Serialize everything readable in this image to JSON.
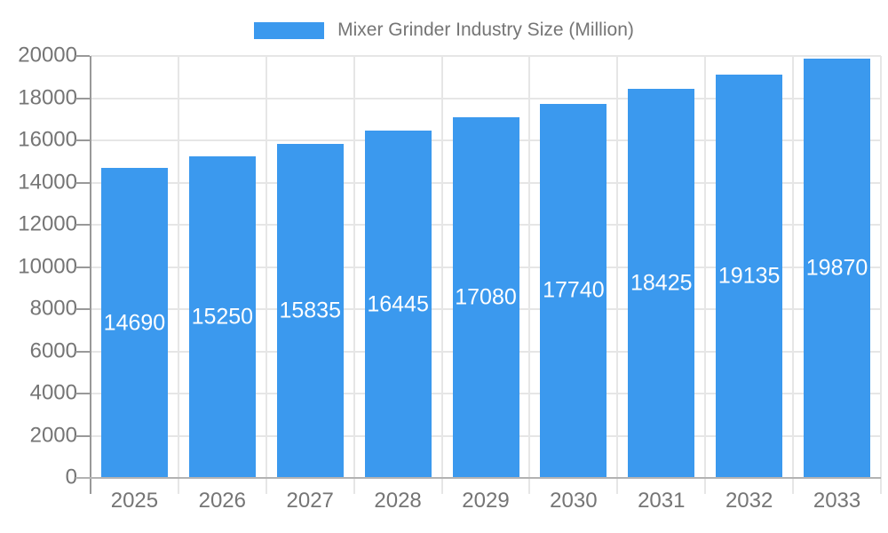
{
  "chart_data": {
    "type": "bar",
    "title": "Mixer Grinder Industry Size (Million)",
    "series": [
      {
        "name": "Mixer Grinder Industry Size (Million)",
        "values": [
          14690,
          15250,
          15835,
          16445,
          17080,
          17740,
          18425,
          19135,
          19870
        ]
      }
    ],
    "categories": [
      "2025",
      "2026",
      "2027",
      "2028",
      "2029",
      "2030",
      "2031",
      "2032",
      "2033"
    ],
    "xlabel": "",
    "ylabel": "",
    "ylim": [
      0,
      20000
    ],
    "ytick_step": 2000,
    "ytick_labels": [
      "0",
      "2000",
      "4000",
      "6000",
      "8000",
      "10000",
      "12000",
      "14000",
      "16000",
      "18000",
      "20000"
    ],
    "grid": true,
    "legend_position": "top-center",
    "value_labels": "inside-center",
    "colors": {
      "bar_fill": "#3b99ee",
      "value_label_text": "#ffffff",
      "axis_text": "#757575",
      "legend_text": "#757575",
      "gridline": "#e6e6e6",
      "y_axis_line": "#999999",
      "x_axis_line": "#b3b3b3",
      "background": "#ffffff"
    }
  }
}
